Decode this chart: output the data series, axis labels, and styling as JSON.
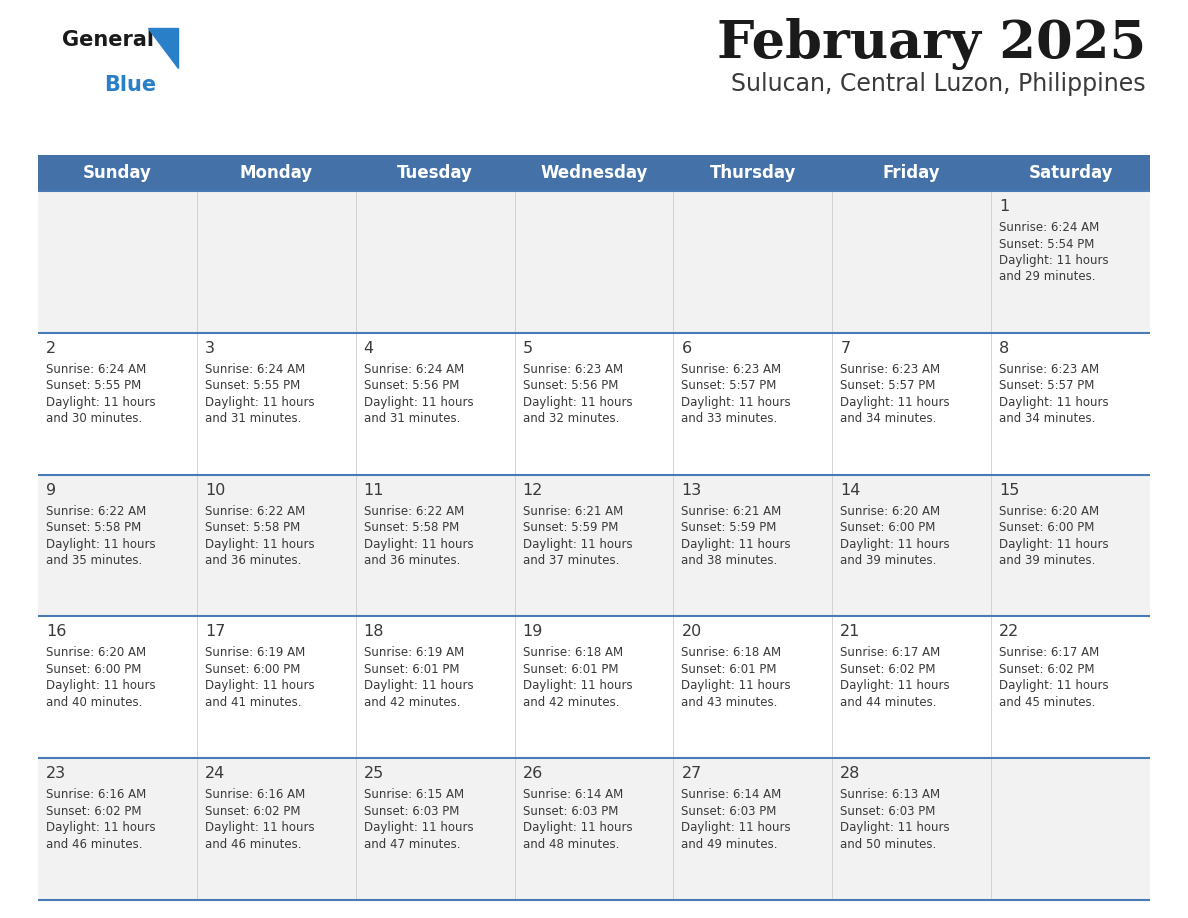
{
  "title": "February 2025",
  "subtitle": "Sulucan, Central Luzon, Philippines",
  "days_of_week": [
    "Sunday",
    "Monday",
    "Tuesday",
    "Wednesday",
    "Thursday",
    "Friday",
    "Saturday"
  ],
  "header_bg": "#4472a8",
  "header_text": "#ffffff",
  "row_bg_light": "#f2f2f2",
  "row_bg_white": "#ffffff",
  "day_num_color": "#3a3a3a",
  "text_color": "#3a3a3a",
  "separator_color": "#4a7ab5",
  "title_color": "#1a1a1a",
  "subtitle_color": "#3a3a3a",
  "logo_general_color": "#1a1a1a",
  "logo_blue_color": "#2a7fc9",
  "calendar_data": [
    [
      null,
      null,
      null,
      null,
      null,
      null,
      {
        "day": 1,
        "sunrise": "6:24 AM",
        "sunset": "5:54 PM",
        "daylight": "11 hours and 29 minutes."
      }
    ],
    [
      {
        "day": 2,
        "sunrise": "6:24 AM",
        "sunset": "5:55 PM",
        "daylight": "11 hours and 30 minutes."
      },
      {
        "day": 3,
        "sunrise": "6:24 AM",
        "sunset": "5:55 PM",
        "daylight": "11 hours and 31 minutes."
      },
      {
        "day": 4,
        "sunrise": "6:24 AM",
        "sunset": "5:56 PM",
        "daylight": "11 hours and 31 minutes."
      },
      {
        "day": 5,
        "sunrise": "6:23 AM",
        "sunset": "5:56 PM",
        "daylight": "11 hours and 32 minutes."
      },
      {
        "day": 6,
        "sunrise": "6:23 AM",
        "sunset": "5:57 PM",
        "daylight": "11 hours and 33 minutes."
      },
      {
        "day": 7,
        "sunrise": "6:23 AM",
        "sunset": "5:57 PM",
        "daylight": "11 hours and 34 minutes."
      },
      {
        "day": 8,
        "sunrise": "6:23 AM",
        "sunset": "5:57 PM",
        "daylight": "11 hours and 34 minutes."
      }
    ],
    [
      {
        "day": 9,
        "sunrise": "6:22 AM",
        "sunset": "5:58 PM",
        "daylight": "11 hours and 35 minutes."
      },
      {
        "day": 10,
        "sunrise": "6:22 AM",
        "sunset": "5:58 PM",
        "daylight": "11 hours and 36 minutes."
      },
      {
        "day": 11,
        "sunrise": "6:22 AM",
        "sunset": "5:58 PM",
        "daylight": "11 hours and 36 minutes."
      },
      {
        "day": 12,
        "sunrise": "6:21 AM",
        "sunset": "5:59 PM",
        "daylight": "11 hours and 37 minutes."
      },
      {
        "day": 13,
        "sunrise": "6:21 AM",
        "sunset": "5:59 PM",
        "daylight": "11 hours and 38 minutes."
      },
      {
        "day": 14,
        "sunrise": "6:20 AM",
        "sunset": "6:00 PM",
        "daylight": "11 hours and 39 minutes."
      },
      {
        "day": 15,
        "sunrise": "6:20 AM",
        "sunset": "6:00 PM",
        "daylight": "11 hours and 39 minutes."
      }
    ],
    [
      {
        "day": 16,
        "sunrise": "6:20 AM",
        "sunset": "6:00 PM",
        "daylight": "11 hours and 40 minutes."
      },
      {
        "day": 17,
        "sunrise": "6:19 AM",
        "sunset": "6:00 PM",
        "daylight": "11 hours and 41 minutes."
      },
      {
        "day": 18,
        "sunrise": "6:19 AM",
        "sunset": "6:01 PM",
        "daylight": "11 hours and 42 minutes."
      },
      {
        "day": 19,
        "sunrise": "6:18 AM",
        "sunset": "6:01 PM",
        "daylight": "11 hours and 42 minutes."
      },
      {
        "day": 20,
        "sunrise": "6:18 AM",
        "sunset": "6:01 PM",
        "daylight": "11 hours and 43 minutes."
      },
      {
        "day": 21,
        "sunrise": "6:17 AM",
        "sunset": "6:02 PM",
        "daylight": "11 hours and 44 minutes."
      },
      {
        "day": 22,
        "sunrise": "6:17 AM",
        "sunset": "6:02 PM",
        "daylight": "11 hours and 45 minutes."
      }
    ],
    [
      {
        "day": 23,
        "sunrise": "6:16 AM",
        "sunset": "6:02 PM",
        "daylight": "11 hours and 46 minutes."
      },
      {
        "day": 24,
        "sunrise": "6:16 AM",
        "sunset": "6:02 PM",
        "daylight": "11 hours and 46 minutes."
      },
      {
        "day": 25,
        "sunrise": "6:15 AM",
        "sunset": "6:03 PM",
        "daylight": "11 hours and 47 minutes."
      },
      {
        "day": 26,
        "sunrise": "6:14 AM",
        "sunset": "6:03 PM",
        "daylight": "11 hours and 48 minutes."
      },
      {
        "day": 27,
        "sunrise": "6:14 AM",
        "sunset": "6:03 PM",
        "daylight": "11 hours and 49 minutes."
      },
      {
        "day": 28,
        "sunrise": "6:13 AM",
        "sunset": "6:03 PM",
        "daylight": "11 hours and 50 minutes."
      },
      null
    ]
  ]
}
